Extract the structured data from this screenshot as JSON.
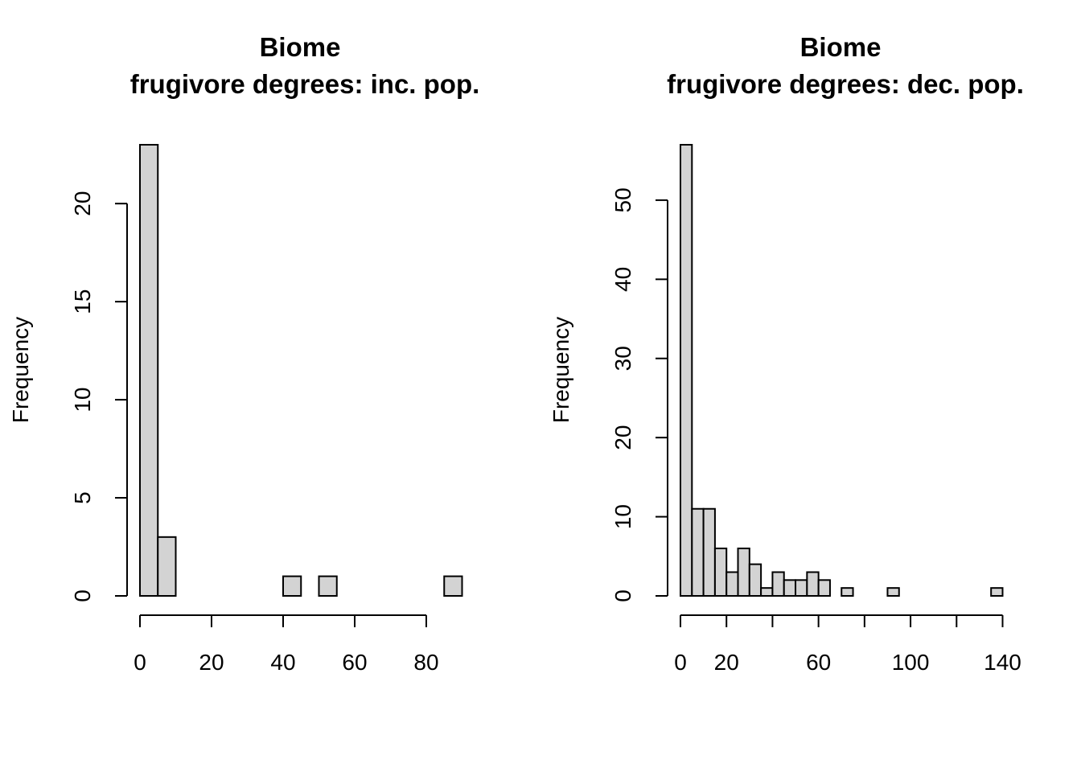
{
  "chart_data": [
    {
      "type": "bar",
      "title_line1": "Biome",
      "title_line2": "frugivore degrees: inc. pop.",
      "xlabel": "",
      "ylabel": "Frequency",
      "bin_width": 5,
      "bins_start": [
        0,
        5,
        10,
        15,
        20,
        25,
        30,
        35,
        40,
        45,
        50,
        55,
        60,
        65,
        70,
        75,
        80,
        85
      ],
      "values": [
        23,
        3,
        0,
        0,
        0,
        0,
        0,
        0,
        1,
        0,
        1,
        0,
        0,
        0,
        0,
        0,
        0,
        1
      ],
      "xlim": [
        0,
        90
      ],
      "ylim": [
        0,
        23
      ],
      "x_ticks": [
        0,
        20,
        40,
        60,
        80
      ],
      "x_tick_labels": [
        "0",
        "20",
        "40",
        "60",
        "80"
      ],
      "y_ticks": [
        0,
        5,
        10,
        15,
        20
      ],
      "y_tick_labels": [
        "0",
        "5",
        "10",
        "15",
        "20"
      ]
    },
    {
      "type": "bar",
      "title_line1": "Biome",
      "title_line2": "frugivore degrees: dec. pop.",
      "xlabel": "",
      "ylabel": "Frequency",
      "bin_width": 5,
      "bins_start": [
        0,
        5,
        10,
        15,
        20,
        25,
        30,
        35,
        40,
        45,
        50,
        55,
        60,
        65,
        70,
        75,
        80,
        85,
        90,
        95,
        100,
        105,
        110,
        115,
        120,
        125,
        130,
        135
      ],
      "values": [
        57,
        11,
        11,
        6,
        3,
        6,
        4,
        1,
        3,
        2,
        2,
        3,
        2,
        0,
        1,
        0,
        0,
        0,
        1,
        0,
        0,
        0,
        0,
        0,
        0,
        0,
        0,
        1
      ],
      "xlim": [
        0,
        140
      ],
      "ylim": [
        0,
        57
      ],
      "x_ticks": [
        0,
        20,
        40,
        60,
        80,
        100,
        120,
        140
      ],
      "x_tick_labels": [
        "0",
        "20",
        "",
        "60",
        "",
        "100",
        "",
        "140"
      ],
      "y_ticks": [
        0,
        10,
        20,
        30,
        40,
        50
      ],
      "y_tick_labels": [
        "0",
        "10",
        "20",
        "30",
        "40",
        "50"
      ]
    }
  ]
}
